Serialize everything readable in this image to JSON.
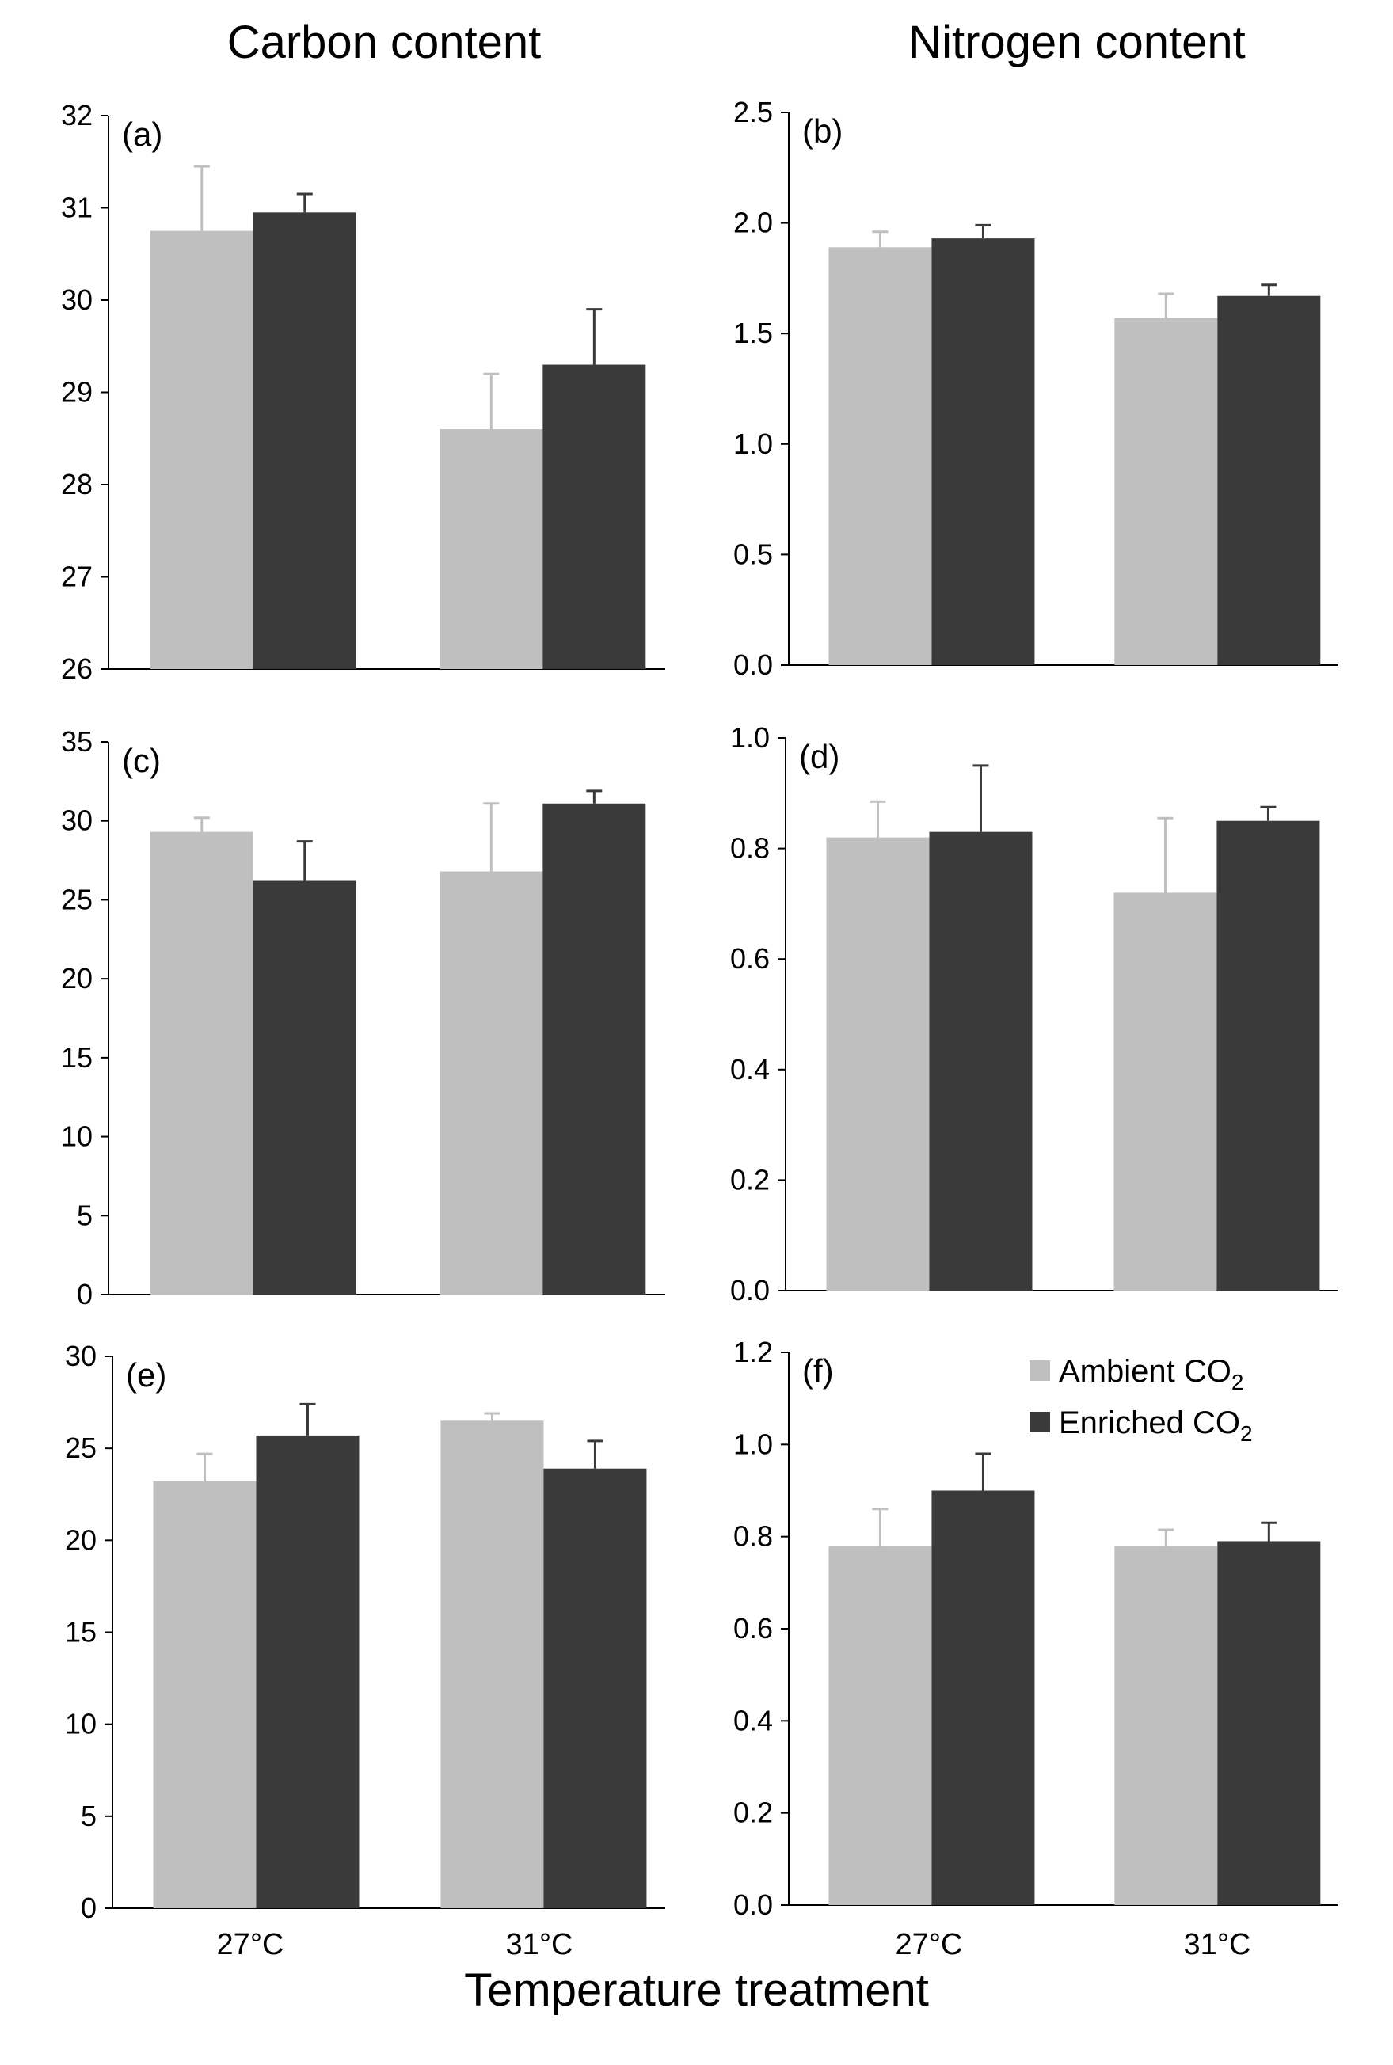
{
  "column_titles": {
    "left": "Carbon content",
    "right": "Nitrogen content"
  },
  "xlabel": "Temperature treatment",
  "categories": [
    "27°C",
    "31°C"
  ],
  "legend": {
    "ambient": "Ambient CO",
    "enriched": "Enriched CO",
    "subscript": "2"
  },
  "colors": {
    "ambient": "#bfbfbf",
    "enriched": "#3a3a3a",
    "axis": "#000000"
  },
  "chart_data": [
    {
      "label": "(a)",
      "type": "bar",
      "ylim": [
        26,
        32
      ],
      "yticks": [
        26,
        27,
        28,
        29,
        30,
        31,
        32
      ],
      "tick_decimals": 0,
      "categories": [
        "27°C",
        "31°C"
      ],
      "series": [
        {
          "name": "Ambient CO2",
          "values": [
            30.75,
            28.6
          ],
          "errors": [
            0.7,
            0.6
          ]
        },
        {
          "name": "Enriched CO2",
          "values": [
            30.95,
            29.3
          ],
          "errors": [
            0.2,
            0.6
          ]
        }
      ]
    },
    {
      "label": "(b)",
      "type": "bar",
      "ylim": [
        0,
        2.5
      ],
      "yticks": [
        0,
        0.5,
        1,
        1.5,
        2,
        2.5
      ],
      "tick_decimals": 1,
      "categories": [
        "27°C",
        "31°C"
      ],
      "series": [
        {
          "name": "Ambient CO2",
          "values": [
            1.89,
            1.57
          ],
          "errors": [
            0.07,
            0.11
          ]
        },
        {
          "name": "Enriched CO2",
          "values": [
            1.93,
            1.67
          ],
          "errors": [
            0.06,
            0.05
          ]
        }
      ]
    },
    {
      "label": "(c)",
      "type": "bar",
      "ylim": [
        0,
        35
      ],
      "yticks": [
        0,
        5,
        10,
        15,
        20,
        25,
        30,
        35
      ],
      "tick_decimals": 0,
      "categories": [
        "27°C",
        "31°C"
      ],
      "series": [
        {
          "name": "Ambient CO2",
          "values": [
            29.3,
            26.8
          ],
          "errors": [
            0.9,
            4.3
          ]
        },
        {
          "name": "Enriched CO2",
          "values": [
            26.2,
            31.1
          ],
          "errors": [
            2.5,
            0.8
          ]
        }
      ]
    },
    {
      "label": "(d)",
      "type": "bar",
      "ylim": [
        0,
        1
      ],
      "yticks": [
        0,
        0.2,
        0.4,
        0.6,
        0.8,
        1
      ],
      "tick_decimals": 1,
      "categories": [
        "27°C",
        "31°C"
      ],
      "series": [
        {
          "name": "Ambient CO2",
          "values": [
            0.82,
            0.72
          ],
          "errors": [
            0.065,
            0.135
          ]
        },
        {
          "name": "Enriched CO2",
          "values": [
            0.83,
            0.85
          ],
          "errors": [
            0.12,
            0.025
          ]
        }
      ]
    },
    {
      "label": "(e)",
      "type": "bar",
      "ylim": [
        0,
        30
      ],
      "yticks": [
        0,
        5,
        10,
        15,
        20,
        25,
        30
      ],
      "tick_decimals": 0,
      "categories": [
        "27°C",
        "31°C"
      ],
      "series": [
        {
          "name": "Ambient CO2",
          "values": [
            23.2,
            26.5
          ],
          "errors": [
            1.5,
            0.4
          ]
        },
        {
          "name": "Enriched CO2",
          "values": [
            25.7,
            23.9
          ],
          "errors": [
            1.7,
            1.5
          ]
        }
      ]
    },
    {
      "label": "(f)",
      "type": "bar",
      "ylim": [
        0,
        1.2
      ],
      "yticks": [
        0,
        0.2,
        0.4,
        0.6,
        0.8,
        1,
        1.2
      ],
      "tick_decimals": 1,
      "categories": [
        "27°C",
        "31°C"
      ],
      "series": [
        {
          "name": "Ambient CO2",
          "values": [
            0.78,
            0.78
          ],
          "errors": [
            0.08,
            0.035
          ]
        },
        {
          "name": "Enriched CO2",
          "values": [
            0.9,
            0.79
          ],
          "errors": [
            0.08,
            0.04
          ]
        }
      ]
    }
  ]
}
